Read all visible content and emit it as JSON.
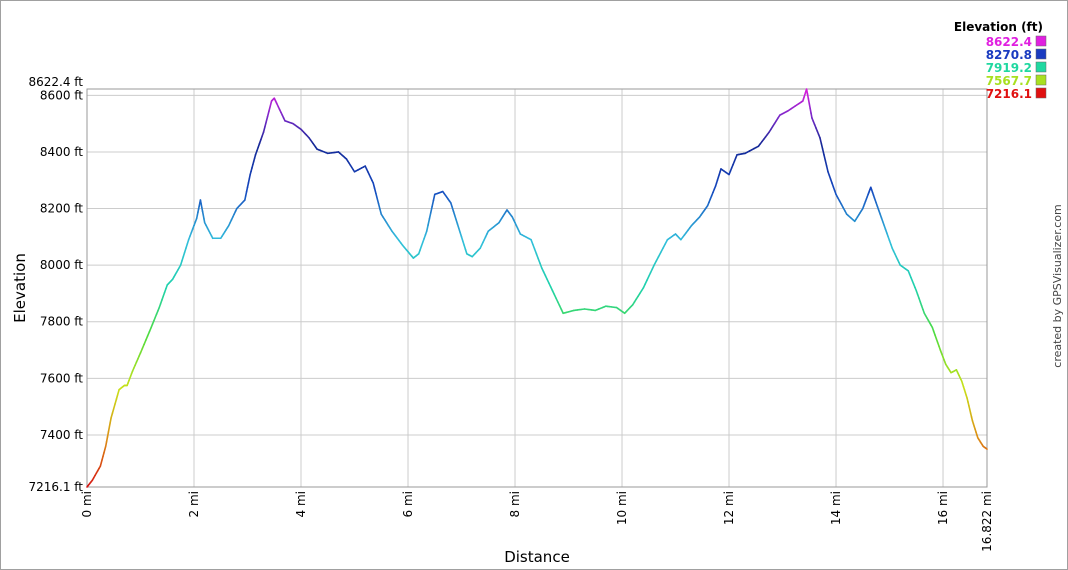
{
  "chart_data": {
    "type": "line",
    "title": "",
    "xlabel": "Distance",
    "ylabel": "Elevation",
    "xlim": [
      0,
      16.822
    ],
    "ylim": [
      7216.1,
      8622.4
    ],
    "grid": true,
    "x_ticks": [
      {
        "value": 0,
        "label": "0 mi"
      },
      {
        "value": 2,
        "label": "2 mi"
      },
      {
        "value": 4,
        "label": "4 mi"
      },
      {
        "value": 6,
        "label": "6 mi"
      },
      {
        "value": 8,
        "label": "8 mi"
      },
      {
        "value": 10,
        "label": "10 mi"
      },
      {
        "value": 12,
        "label": "12 mi"
      },
      {
        "value": 14,
        "label": "14 mi"
      },
      {
        "value": 16,
        "label": "16 mi"
      },
      {
        "value": 16.822,
        "label": "16.822 mi"
      }
    ],
    "y_ticks": [
      {
        "value": 7216.1,
        "label": "7216.1 ft"
      },
      {
        "value": 7400,
        "label": "7400 ft"
      },
      {
        "value": 7600,
        "label": "7600 ft"
      },
      {
        "value": 7800,
        "label": "7800 ft"
      },
      {
        "value": 8000,
        "label": "8000 ft"
      },
      {
        "value": 8200,
        "label": "8200 ft"
      },
      {
        "value": 8400,
        "label": "8400 ft"
      },
      {
        "value": 8600,
        "label": "8600 ft"
      },
      {
        "value": 8622.4,
        "label": "8622.4 ft"
      }
    ],
    "legend": {
      "title": "Elevation (ft)",
      "placement": "top-right",
      "entries": [
        {
          "label": "8622.4",
          "color": "#e020e0"
        },
        {
          "label": "8270.8",
          "color": "#1a3bc0"
        },
        {
          "label": "7919.2",
          "color": "#20d8a0"
        },
        {
          "label": "7567.7",
          "color": "#a8e020"
        },
        {
          "label": "7216.1",
          "color": "#e01010"
        }
      ]
    },
    "series": [
      {
        "x": [
          0,
          0.1,
          0.25,
          0.35,
          0.45,
          0.6,
          0.7,
          0.75,
          0.85,
          1.0,
          1.2,
          1.35,
          1.5,
          1.6,
          1.75,
          1.9,
          2.05,
          2.12,
          2.2,
          2.35,
          2.5,
          2.65,
          2.8,
          2.95,
          3.05,
          3.15,
          3.3,
          3.45,
          3.5,
          3.55,
          3.7,
          3.85,
          4.0,
          4.15,
          4.3,
          4.5,
          4.7,
          4.85,
          5.0,
          5.2,
          5.35,
          5.5,
          5.7,
          5.9,
          6.1,
          6.2,
          6.35,
          6.5,
          6.65,
          6.8,
          6.95,
          7.1,
          7.2,
          7.35,
          7.5,
          7.7,
          7.85,
          7.95,
          8.1,
          8.3,
          8.5,
          8.7,
          8.9,
          9.1,
          9.3,
          9.5,
          9.7,
          9.9,
          10.05,
          10.2,
          10.4,
          10.6,
          10.85,
          11.0,
          11.1,
          11.3,
          11.45,
          11.6,
          11.75,
          11.85,
          12.0,
          12.15,
          12.3,
          12.55,
          12.75,
          12.95,
          13.1,
          13.3,
          13.38,
          13.45,
          13.55,
          13.7,
          13.85,
          14.0,
          14.2,
          14.35,
          14.5,
          14.6,
          14.65,
          14.75,
          14.9,
          15.05,
          15.2,
          15.35,
          15.5,
          15.65,
          15.8,
          15.95,
          16.05,
          16.15,
          16.25,
          16.35,
          16.45,
          16.55,
          16.65,
          16.75,
          16.822
        ],
        "values": [
          7216,
          7240,
          7290,
          7360,
          7460,
          7560,
          7575,
          7575,
          7625,
          7690,
          7780,
          7850,
          7930,
          7950,
          8000,
          8090,
          8165,
          8230,
          8150,
          8095,
          8095,
          8140,
          8200,
          8230,
          8320,
          8390,
          8470,
          8580,
          8590,
          8570,
          8510,
          8500,
          8480,
          8450,
          8410,
          8395,
          8400,
          8375,
          8330,
          8350,
          8290,
          8180,
          8120,
          8070,
          8025,
          8040,
          8120,
          8250,
          8260,
          8220,
          8130,
          8040,
          8030,
          8060,
          8120,
          8150,
          8195,
          8170,
          8110,
          8090,
          7990,
          7910,
          7830,
          7840,
          7845,
          7840,
          7855,
          7850,
          7830,
          7860,
          7920,
          8000,
          8090,
          8110,
          8090,
          8140,
          8170,
          8210,
          8280,
          8340,
          8320,
          8390,
          8395,
          8420,
          8470,
          8530,
          8545,
          8570,
          8580,
          8622,
          8520,
          8450,
          8330,
          8250,
          8180,
          8155,
          8200,
          8250,
          8275,
          8220,
          8140,
          8060,
          8000,
          7980,
          7910,
          7830,
          7780,
          7700,
          7650,
          7620,
          7630,
          7590,
          7530,
          7450,
          7390,
          7360,
          7350
        ]
      }
    ],
    "credit": "created by GPSVisualizer.com"
  }
}
